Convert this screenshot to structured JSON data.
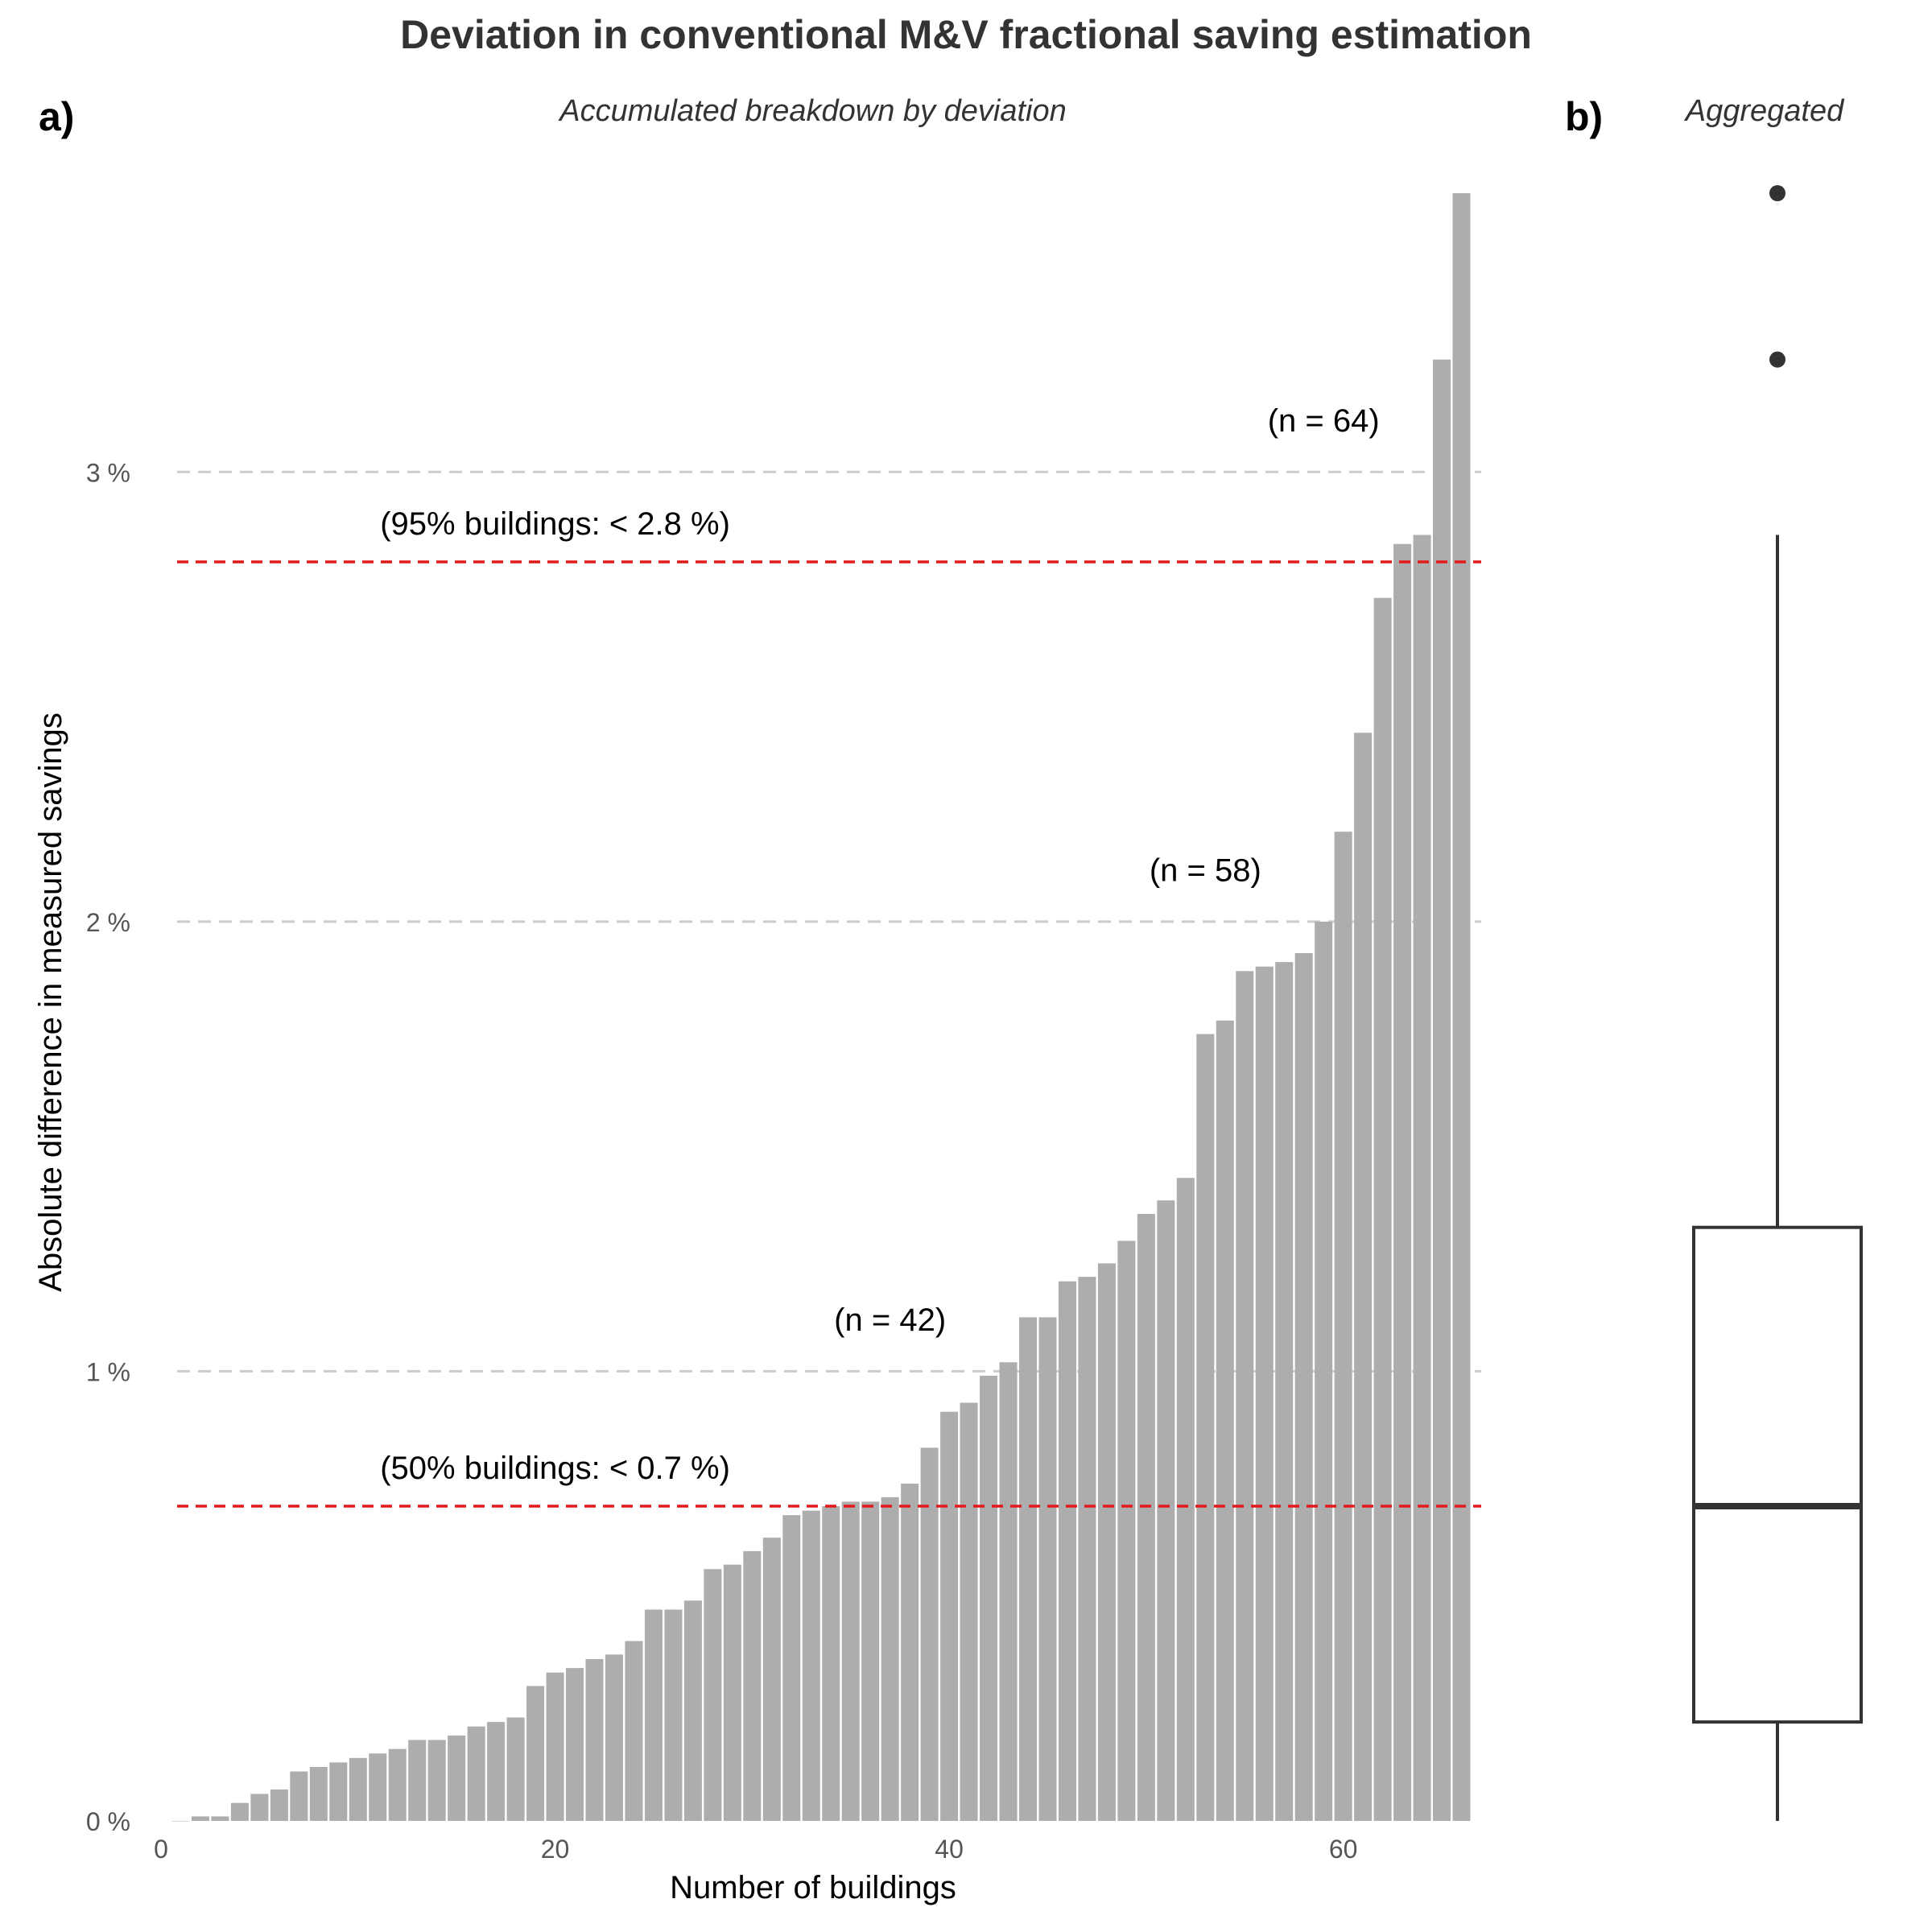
{
  "title": "Deviation in conventional M&V fractional saving estimation",
  "panels": {
    "a": {
      "tag": "a)",
      "subtitle": "Accumulated breakdown by deviation"
    },
    "b": {
      "tag": "b)",
      "subtitle": "Aggregated"
    }
  },
  "colors": {
    "bar": "#ADADAD",
    "threshold": "#E31A1C",
    "grid": "#CCCCCC",
    "box": "#333333",
    "text": "#333333",
    "axis_text": "#555555"
  },
  "chart_data": [
    {
      "type": "bar",
      "panel": "a",
      "xlabel": "Number of buildings",
      "ylabel": "Absolute difference in measured savings",
      "xlim": [
        0,
        67
      ],
      "ylim": [
        0,
        3.62
      ],
      "xticks": [
        0,
        20,
        40,
        60
      ],
      "xtick_labels": [
        "0",
        "20",
        "40",
        "60"
      ],
      "yticks": [
        0,
        1,
        2,
        3
      ],
      "ytick_labels": [
        "0 %",
        "1 %",
        "2 %",
        "3 %"
      ],
      "grid_lines": [
        1,
        2,
        3
      ],
      "categories": [
        1,
        2,
        3,
        4,
        5,
        6,
        7,
        8,
        9,
        10,
        11,
        12,
        13,
        14,
        15,
        16,
        17,
        18,
        19,
        20,
        21,
        22,
        23,
        24,
        25,
        26,
        27,
        28,
        29,
        30,
        31,
        32,
        33,
        34,
        35,
        36,
        37,
        38,
        39,
        40,
        41,
        42,
        43,
        44,
        45,
        46,
        47,
        48,
        49,
        50,
        51,
        52,
        53,
        54,
        55,
        56,
        57,
        58,
        59,
        60,
        61,
        62,
        63,
        64,
        65,
        66
      ],
      "values": [
        0.0,
        0.01,
        0.01,
        0.04,
        0.06,
        0.07,
        0.11,
        0.12,
        0.13,
        0.14,
        0.15,
        0.16,
        0.18,
        0.18,
        0.19,
        0.21,
        0.22,
        0.23,
        0.3,
        0.33,
        0.34,
        0.36,
        0.37,
        0.4,
        0.47,
        0.47,
        0.49,
        0.56,
        0.57,
        0.6,
        0.63,
        0.68,
        0.69,
        0.7,
        0.71,
        0.71,
        0.72,
        0.75,
        0.83,
        0.91,
        0.93,
        0.99,
        1.02,
        1.12,
        1.12,
        1.2,
        1.21,
        1.24,
        1.29,
        1.35,
        1.38,
        1.43,
        1.75,
        1.78,
        1.89,
        1.9,
        1.91,
        1.93,
        2.0,
        2.2,
        2.42,
        2.72,
        2.84,
        2.86,
        3.25,
        3.82
      ],
      "thresholds": [
        {
          "value": 2.8,
          "label": "(95% buildings: < 2.8 %)",
          "label_x": 20
        },
        {
          "value": 0.7,
          "label": "(50% buildings: < 0.7 %)",
          "label_x": 20
        }
      ],
      "annotations": [
        {
          "label": "(n = 42)",
          "x": 37,
          "y": 1.09
        },
        {
          "label": "(n = 58)",
          "x": 53,
          "y": 2.09
        },
        {
          "label": "(n = 64)",
          "x": 59,
          "y": 3.09
        }
      ]
    },
    {
      "type": "box",
      "panel": "b",
      "whisker_low": 0.0,
      "q1": 0.22,
      "median": 0.7,
      "q3": 1.32,
      "whisker_high": 2.86,
      "outliers": [
        3.25,
        3.82
      ]
    }
  ]
}
